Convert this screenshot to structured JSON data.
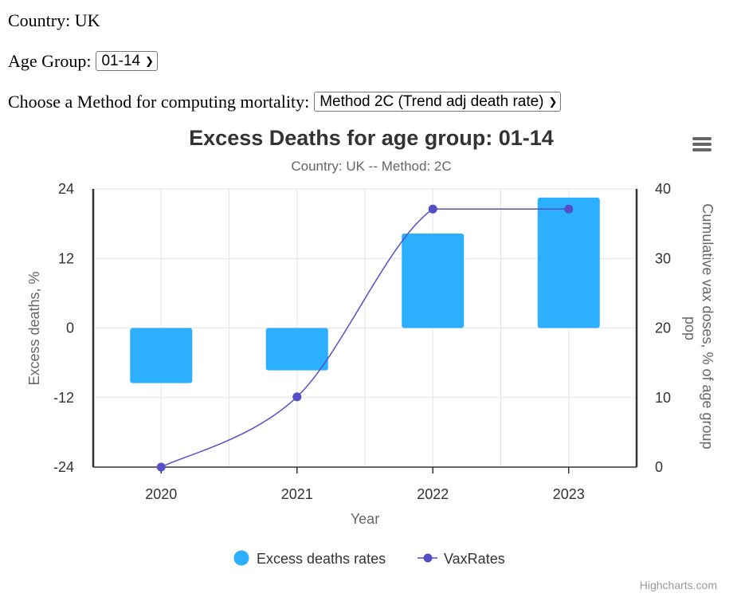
{
  "controls": {
    "country_label": "Country: UK",
    "age_group_label": "Age Group:",
    "age_group_value": "01-14",
    "method_label": "Choose a Method for computing mortality:",
    "method_value": "Method 2C (Trend adj death rate)"
  },
  "menu_icon": "hamburger-menu-icon",
  "credits": "Highcharts.com",
  "chart_data": {
    "type": "bar",
    "title": "Excess Deaths for age group: 01-14",
    "subtitle": "Country: UK -- Method: 2C",
    "xlabel": "Year",
    "ylabel": "Excess deaths, %",
    "y2label": "Cumulative vax doses, % of age group pop",
    "categories": [
      "2020",
      "2021",
      "2022",
      "2023"
    ],
    "ylim": [
      -24,
      24
    ],
    "yticks": [
      "24",
      "12",
      "0",
      "-12",
      "-24"
    ],
    "y2lim": [
      0,
      40
    ],
    "y2ticks": [
      "40",
      "30",
      "20",
      "10",
      "0"
    ],
    "grid": true,
    "legend_position": "bottom-center",
    "series": [
      {
        "name": "Excess deaths rates",
        "type": "column",
        "axis": "left",
        "color": "#2caffe",
        "values": [
          -9.5,
          -7.3,
          16.3,
          22.5
        ]
      },
      {
        "name": "VaxRates",
        "type": "spline",
        "axis": "right",
        "color": "#544fc5",
        "values": [
          0,
          10.1,
          37.1,
          37.1
        ]
      }
    ]
  }
}
